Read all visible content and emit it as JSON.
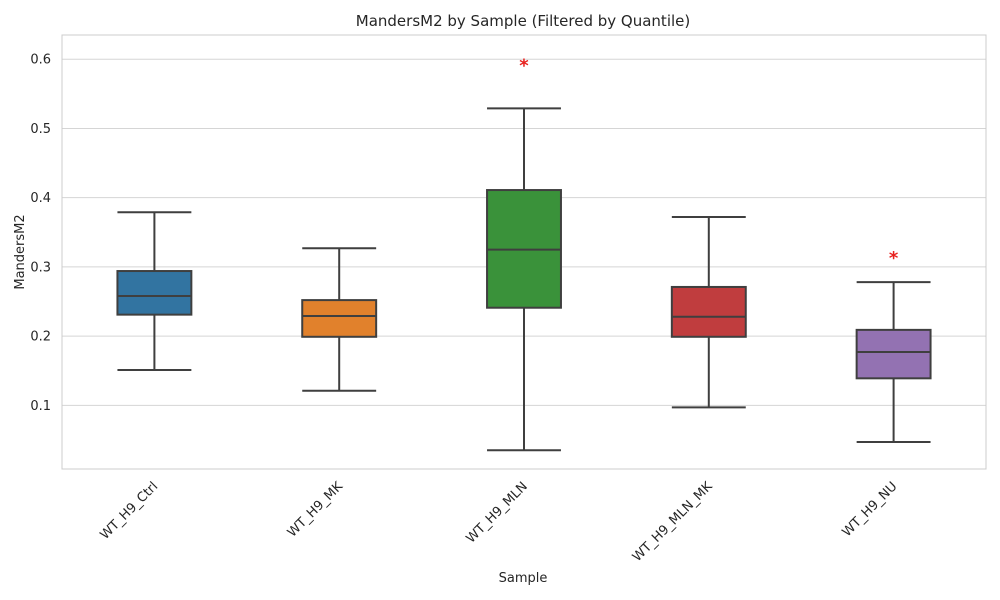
{
  "chart_data": {
    "type": "box",
    "title": "MandersM2 by Sample (Filtered by Quantile)",
    "xlabel": "Sample",
    "ylabel": "MandersM2",
    "ylim": [
      0.008,
      0.635
    ],
    "yticks": [
      "0.1",
      "0.2",
      "0.3",
      "0.4",
      "0.5",
      "0.6"
    ],
    "grid": true,
    "significance_marker": "*",
    "marker_color": "#e8221f",
    "boxes": [
      {
        "category": "WT_H9_Ctrl",
        "color": "#3274a1",
        "whisker_low": 0.151,
        "q1": 0.231,
        "median": 0.258,
        "q3": 0.294,
        "whisker_high": 0.379,
        "marker_y": null
      },
      {
        "category": "WT_H9_MK",
        "color": "#e1812c",
        "whisker_low": 0.121,
        "q1": 0.199,
        "median": 0.229,
        "q3": 0.252,
        "whisker_high": 0.327,
        "marker_y": null
      },
      {
        "category": "WT_H9_MLN",
        "color": "#3a923a",
        "whisker_low": 0.035,
        "q1": 0.241,
        "median": 0.325,
        "q3": 0.411,
        "whisker_high": 0.529,
        "marker_y": 0.598
      },
      {
        "category": "WT_H9_MLN_MK",
        "color": "#c03d3e",
        "whisker_low": 0.097,
        "q1": 0.199,
        "median": 0.228,
        "q3": 0.271,
        "whisker_high": 0.372,
        "marker_y": null
      },
      {
        "category": "WT_H9_NU",
        "color": "#9372b2",
        "whisker_low": 0.047,
        "q1": 0.139,
        "median": 0.177,
        "q3": 0.209,
        "whisker_high": 0.278,
        "marker_y": 0.32
      }
    ]
  }
}
